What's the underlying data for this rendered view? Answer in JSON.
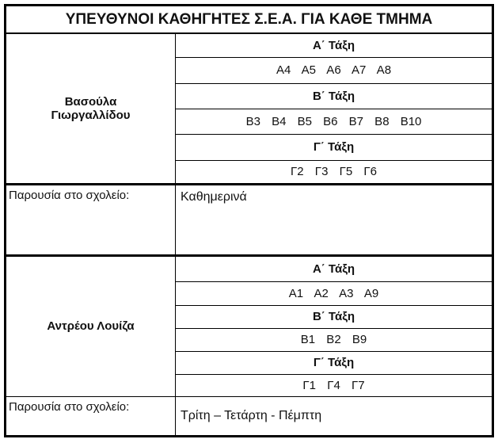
{
  "title": "ΥΠΕΥΘΥΝΟΙ ΚΑΘΗΓΗΤΕΣ Σ.Ε.Α. ΓΙΑ ΚΑΘΕ ΤΜΗΜΑ",
  "teachers": [
    {
      "name_line1": "Βασούλα",
      "name_line2": "Γιωργαλλίδου",
      "grades": [
        {
          "label": "Α΄ Τάξη",
          "classes": "Α4 Α5 Α6 Α7 Α8"
        },
        {
          "label": "Β΄ Τάξη",
          "classes": "Β3 Β4 Β5 Β6 Β7 Β8 Β10"
        },
        {
          "label": "Γ΄ Τάξη",
          "classes": "Γ2 Γ3 Γ5 Γ6"
        }
      ],
      "presence_label": "Παρουσία στο σχολείο:",
      "presence_value": "Καθημερινά"
    },
    {
      "name_line1": "Αντρέου Λουίζα",
      "grades": [
        {
          "label": "Α΄ Τάξη",
          "classes": "Α1 Α2 Α3 Α9"
        },
        {
          "label": "Β΄ Τάξη",
          "classes": "Β1 Β2 Β9"
        },
        {
          "label": "Γ΄ Τάξη",
          "classes": "Γ1 Γ4 Γ7"
        }
      ],
      "presence_label": "Παρουσία στο σχολείο:",
      "presence_value": "Τρίτη – Τετάρτη - Πέμπτη"
    }
  ]
}
